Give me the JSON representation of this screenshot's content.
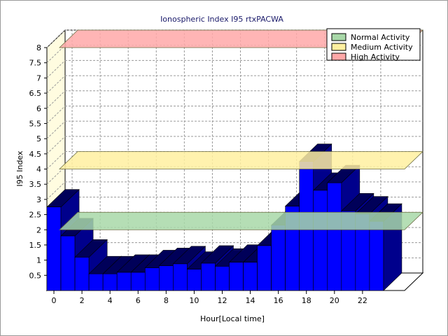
{
  "chart_data": {
    "type": "bar",
    "title": "Ionospheric Index I95 rtxPACWA",
    "xlabel": "Hour[Local time]",
    "ylabel": "I95 Index",
    "x_ticks": [
      "0",
      "2",
      "4",
      "6",
      "8",
      "10",
      "12",
      "14",
      "16",
      "18",
      "20",
      "22"
    ],
    "y_ticks": [
      "0.5",
      "1",
      "1.5",
      "2",
      "2.5",
      "3",
      "3.5",
      "4",
      "4.5",
      "5",
      "5.5",
      "6",
      "6.5",
      "7",
      "7.5",
      "8"
    ],
    "ylim": [
      0,
      8
    ],
    "xlim": [
      0,
      25.5
    ],
    "grid": true,
    "legend_position": "top-right",
    "projection": "3d",
    "x": [
      0,
      1,
      2,
      3,
      4,
      5,
      6,
      7,
      8,
      9,
      10,
      11,
      12,
      13,
      14,
      15,
      16,
      17,
      18,
      19,
      20,
      21,
      22,
      23
    ],
    "series": [
      {
        "color": "#0000ff",
        "values": [
          2.75,
          1.8,
          1.1,
          0.55,
          0.55,
          0.6,
          0.6,
          0.75,
          0.82,
          0.88,
          0.7,
          0.9,
          0.8,
          0.93,
          0.93,
          1.48,
          2.15,
          2.78,
          4.25,
          3.3,
          3.55,
          2.62,
          2.52,
          2.28
        ]
      }
    ],
    "bands": [
      {
        "name": "Normal Activity",
        "from": 2.0,
        "to": 2.5,
        "color": "#a8d8a8"
      },
      {
        "name": "Medium Activity",
        "from": 4.0,
        "to": 4.5,
        "color": "#fff0a0"
      },
      {
        "name": "High Activity",
        "from": 8.0,
        "to": 8.5,
        "color": "#ffa8a8"
      }
    ]
  }
}
